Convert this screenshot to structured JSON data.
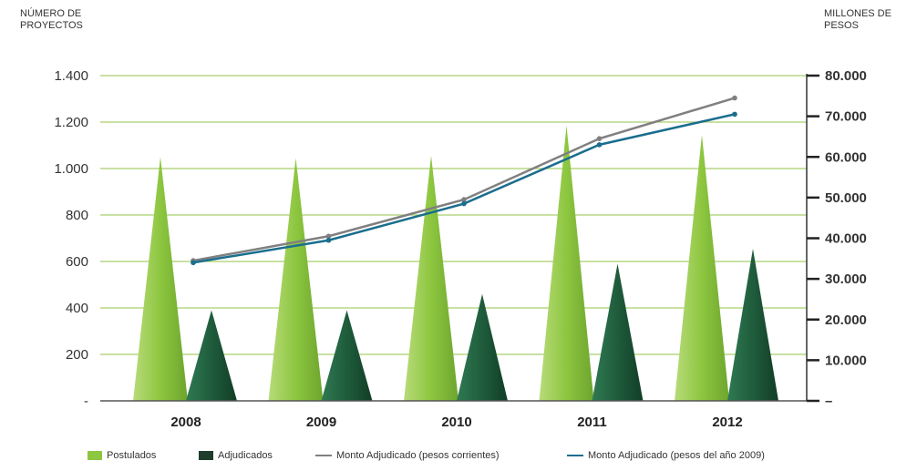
{
  "chart_data": {
    "type": "bar",
    "categories": [
      "2008",
      "2009",
      "2010",
      "2011",
      "2012"
    ],
    "left_axis": {
      "title": "NÚMERO DE PROYECTOS",
      "ylim": [
        0,
        1400
      ],
      "ticks": [
        0,
        200,
        400,
        600,
        800,
        1000,
        1200,
        1400
      ],
      "tick_labels": [
        "-",
        "200",
        "400",
        "600",
        "800",
        "1.000",
        "1.200",
        "1.400"
      ]
    },
    "right_axis": {
      "title": "MILLONES DE PESOS",
      "ylim": [
        0,
        80000
      ],
      "ticks": [
        0,
        10000,
        20000,
        30000,
        40000,
        50000,
        60000,
        70000,
        80000
      ],
      "tick_labels": [
        "–",
        "10.000",
        "20.000",
        "30.000",
        "40.000",
        "50.000",
        "60.000",
        "70.000",
        "80.000"
      ]
    },
    "grid": true,
    "legend_placement": "bottom",
    "series": [
      {
        "name": "Postulados",
        "kind": "bar",
        "axis": "left",
        "color": "#8dc63f",
        "values": [
          1050,
          1045,
          1055,
          1185,
          1145
        ]
      },
      {
        "name": "Adjudicados",
        "kind": "bar",
        "axis": "left",
        "color": "#1f5c3c",
        "values": [
          390,
          390,
          460,
          590,
          655
        ]
      },
      {
        "name": "Monto Adjudicado (pesos corrientes)",
        "kind": "line",
        "axis": "right",
        "color": "#808080",
        "values": [
          34500,
          40500,
          49500,
          64500,
          74500
        ]
      },
      {
        "name": "Monto Adjudicado (pesos del año 2009)",
        "kind": "line",
        "axis": "right",
        "color": "#1a6e8e",
        "values": [
          34000,
          39500,
          48500,
          63000,
          70500
        ]
      }
    ]
  }
}
